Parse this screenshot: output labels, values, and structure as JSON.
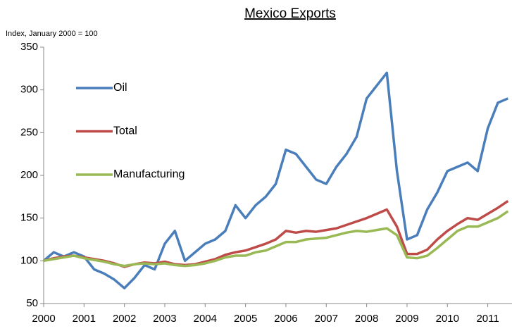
{
  "chart_data": {
    "type": "line",
    "title": "Mexico Exports",
    "y_label": "Index, January 2000 = 100",
    "x": [
      2000,
      2000.25,
      2000.5,
      2000.75,
      2001,
      2001.25,
      2001.5,
      2001.75,
      2002,
      2002.25,
      2002.5,
      2002.75,
      2003,
      2003.25,
      2003.5,
      2003.75,
      2004,
      2004.25,
      2004.5,
      2004.75,
      2005,
      2005.25,
      2005.5,
      2005.75,
      2006,
      2006.25,
      2006.5,
      2006.75,
      2007,
      2007.25,
      2007.5,
      2007.75,
      2008,
      2008.25,
      2008.5,
      2008.75,
      2009,
      2009.25,
      2009.5,
      2009.75,
      2010,
      2010.25,
      2010.5,
      2010.75,
      2011,
      2011.25,
      2011.5
    ],
    "xlim": [
      2000,
      2011.6
    ],
    "xticks": [
      2000,
      2001,
      2002,
      2003,
      2004,
      2005,
      2006,
      2007,
      2008,
      2009,
      2010,
      2011
    ],
    "ylim": [
      50,
      350
    ],
    "yticks": [
      50,
      100,
      150,
      200,
      250,
      300,
      350
    ],
    "legend": "left",
    "series": [
      {
        "name": "Oil",
        "color": "#4a7ebb",
        "values": [
          100,
          110,
          105,
          110,
          105,
          90,
          85,
          78,
          68,
          80,
          95,
          90,
          120,
          135,
          100,
          110,
          120,
          125,
          135,
          165,
          150,
          165,
          175,
          190,
          230,
          225,
          210,
          195,
          190,
          210,
          225,
          245,
          290,
          305,
          320,
          205,
          125,
          130,
          160,
          180,
          205,
          210,
          215,
          205,
          255,
          285,
          290
        ]
      },
      {
        "name": "Total",
        "color": "#be4b48",
        "values": [
          100,
          103,
          105,
          106,
          104,
          102,
          100,
          97,
          93,
          96,
          98,
          97,
          99,
          96,
          95,
          96,
          99,
          102,
          107,
          110,
          112,
          116,
          120,
          125,
          135,
          133,
          135,
          134,
          136,
          138,
          142,
          146,
          150,
          155,
          160,
          140,
          108,
          108,
          113,
          125,
          135,
          143,
          150,
          148,
          155,
          162,
          170
        ]
      },
      {
        "name": "Manufacturing",
        "color": "#98b954",
        "values": [
          100,
          102,
          104,
          106,
          103,
          101,
          99,
          96,
          94,
          96,
          97,
          96,
          97,
          95,
          94,
          95,
          97,
          100,
          104,
          106,
          106,
          110,
          112,
          117,
          122,
          122,
          125,
          126,
          127,
          130,
          133,
          135,
          134,
          136,
          138,
          130,
          104,
          103,
          106,
          115,
          125,
          135,
          140,
          140,
          145,
          150,
          158
        ]
      }
    ]
  }
}
